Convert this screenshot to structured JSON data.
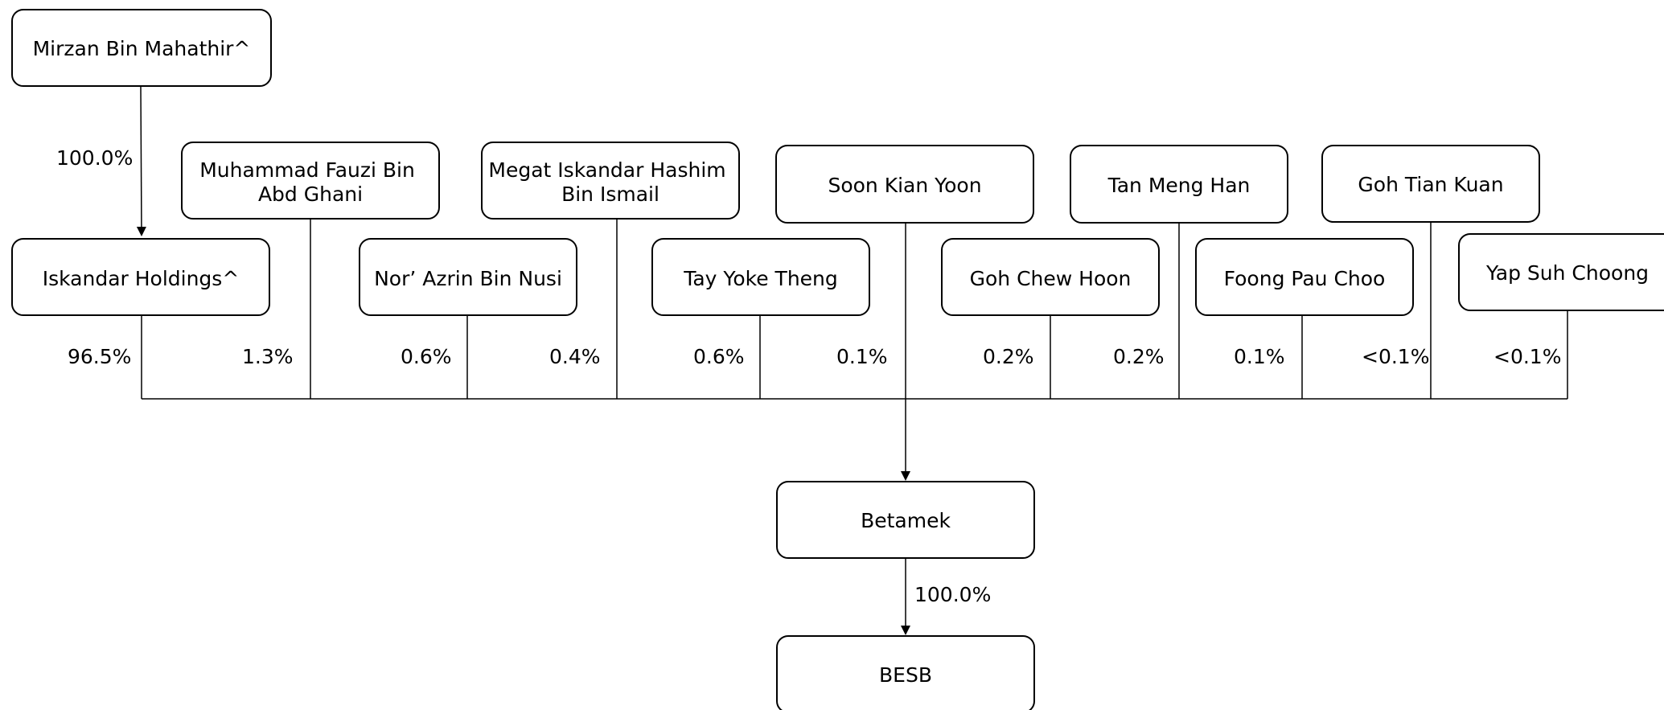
{
  "entities": {
    "mirzan": [
      "Mirzan Bin Mahathir^"
    ],
    "iskandar_holdings": [
      "Iskandar Holdings^"
    ],
    "fauzi": [
      "Muhammad Fauzi Bin",
      "Abd Ghani"
    ],
    "nor_azrin": [
      "Nor’ Azrin Bin Nusi"
    ],
    "megat": [
      "Megat Iskandar Hashim",
      "Bin Ismail"
    ],
    "tay": [
      "Tay Yoke Theng"
    ],
    "soon": [
      "Soon Kian Yoon"
    ],
    "goh_chew": [
      "Goh Chew Hoon"
    ],
    "tan": [
      "Tan Meng Han"
    ],
    "foong": [
      "Foong Pau Choo"
    ],
    "goh_tian": [
      "Goh Tian Kuan"
    ],
    "yap": [
      "Yap Suh Choong"
    ],
    "betamek": [
      "Betamek"
    ],
    "besb": [
      "BESB"
    ]
  },
  "ownership": {
    "mirzan_to_iskandar": "100.0%",
    "iskandar_holdings": "96.5%",
    "fauzi": "1.3%",
    "nor_azrin": "0.6%",
    "megat": "0.4%",
    "tay": "0.6%",
    "soon": "0.1%",
    "goh_chew": "0.2%",
    "tan": "0.2%",
    "foong": "0.1%",
    "goh_tian": "<0.1%",
    "yap": "<0.1%",
    "betamek_to_besb": "100.0%"
  },
  "colors": {
    "line": "#000000",
    "box_fill": "#ffffff",
    "text": "#000000"
  }
}
